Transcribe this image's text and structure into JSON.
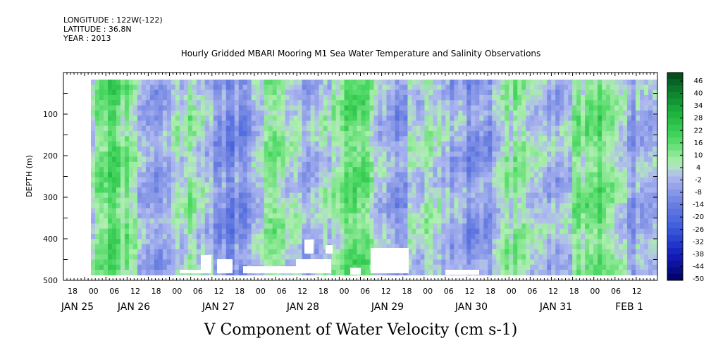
{
  "header": {
    "longitude": "LONGITUDE : 122W(-122)",
    "latitude": "LATITUDE : 36.8N",
    "year": "YEAR : 2013"
  },
  "chart_data": {
    "type": "heatmap",
    "title": "Hourly Gridded MBARI Mooring M1 Sea Water Temperature and Salinity Observations",
    "xlabel": "V Component of Water Velocity (cm s-1)",
    "ylabel": "DEPTH (m)",
    "ylim": [
      500,
      0
    ],
    "y_ticks": [
      100,
      200,
      300,
      400,
      500
    ],
    "x_hour_ticks": [
      "18",
      "00",
      "06",
      "12",
      "18",
      "00",
      "06",
      "12",
      "18",
      "00",
      "06",
      "12",
      "18",
      "00",
      "06",
      "12",
      "18",
      "00",
      "06",
      "12",
      "18",
      "00",
      "06",
      "12",
      "18",
      "00",
      "06",
      "12"
    ],
    "x_date_labels": [
      "JAN 25",
      "JAN 26",
      "JAN 27",
      "JAN 28",
      "JAN 29",
      "JAN 30",
      "JAN 31",
      "FEB  1"
    ],
    "colorbar_levels": [
      "46",
      "40",
      "34",
      "28",
      "22",
      "16",
      "10",
      "4",
      "-2",
      "-8",
      "-14",
      "-20",
      "-26",
      "-32",
      "-38",
      "-44",
      "-50"
    ],
    "colorbar_range": [
      -50,
      46
    ],
    "colors": {
      "strong_negative": "#00006a",
      "negative": "#3a55d8",
      "weak_negative": "#a9b4f0",
      "weak_positive": "#a9eea9",
      "positive": "#22c83c",
      "strong_positive": "#004d1f",
      "missing": "#ffffff"
    }
  }
}
